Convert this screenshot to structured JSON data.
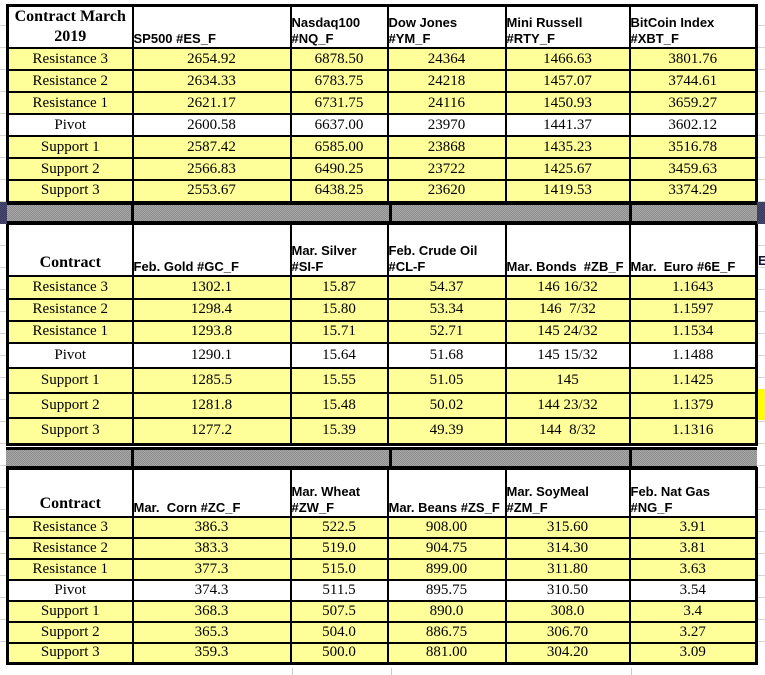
{
  "colors": {
    "row_highlight": "#FFFF99",
    "pivot_row_background": "#FFFFFF",
    "table_border": "#000000",
    "separator_gray": "#999999",
    "separator_header_blue": "#414167",
    "edge_fragment_yellow": "#FFFF00"
  },
  "edge_fragment_letter": "E",
  "tables": [
    {
      "name": "march-2019-index-futures",
      "corner_label": "Contract March\n2019",
      "columns": [
        "SP500 #ES_F",
        "Nasdaq100\n#NQ_F",
        "Dow Jones\n#YM_F",
        "Mini Russell\n#RTY_F",
        "BitCoin Index\n#XBT_F"
      ],
      "rows": [
        {
          "label": "Resistance 3",
          "values": [
            "2654.92",
            "6878.50",
            "24364",
            "1466.63",
            "3801.76"
          ]
        },
        {
          "label": "Resistance 2",
          "values": [
            "2634.33",
            "6783.75",
            "24218",
            "1457.07",
            "3744.61"
          ]
        },
        {
          "label": "Resistance 1",
          "values": [
            "2621.17",
            "6731.75",
            "24116",
            "1450.93",
            "3659.27"
          ]
        },
        {
          "label": "Pivot",
          "values": [
            "2600.58",
            "6637.00",
            "23970",
            "1441.37",
            "3602.12"
          ]
        },
        {
          "label": "Support 1",
          "values": [
            "2587.42",
            "6585.00",
            "23868",
            "1435.23",
            "3516.78"
          ]
        },
        {
          "label": "Support 2",
          "values": [
            "2566.83",
            "6490.25",
            "23722",
            "1425.67",
            "3459.63"
          ]
        },
        {
          "label": "Support 3",
          "values": [
            "2553.67",
            "6438.25",
            "23620",
            "1419.53",
            "3374.29"
          ]
        }
      ]
    },
    {
      "name": "metals-energy-bonds-euro-futures",
      "corner_label": "Contract",
      "columns": [
        "Feb. Gold #GC_F",
        "Mar. Silver\n#SI-F",
        "Feb. Crude Oil\n#CL-F",
        "Mar. Bonds  #ZB_F",
        "Mar.  Euro #6E_F"
      ],
      "rows": [
        {
          "label": "Resistance 3",
          "values": [
            "1302.1",
            "15.87",
            "54.37",
            "146 16/32",
            "1.1643"
          ]
        },
        {
          "label": "Resistance 2",
          "values": [
            "1298.4",
            "15.80",
            "53.34",
            "146  7/32",
            "1.1597"
          ]
        },
        {
          "label": "Resistance 1",
          "values": [
            "1293.8",
            "15.71",
            "52.71",
            "145 24/32",
            "1.1534"
          ]
        },
        {
          "label": "Pivot",
          "values": [
            "1290.1",
            "15.64",
            "51.68",
            "145 15/32",
            "1.1488"
          ]
        },
        {
          "label": "Support 1",
          "values": [
            "1285.5",
            "15.55",
            "51.05",
            "145",
            "1.1425"
          ]
        },
        {
          "label": "Support 2",
          "values": [
            "1281.8",
            "15.48",
            "50.02",
            "144 23/32",
            "1.1379"
          ]
        },
        {
          "label": "Support 3",
          "values": [
            "1277.2",
            "15.39",
            "49.39",
            "144  8/32",
            "1.1316"
          ]
        }
      ]
    },
    {
      "name": "grains-natgas-futures",
      "corner_label": "Contract",
      "columns": [
        "Mar.  Corn #ZC_F",
        "Mar. Wheat\n#ZW_F",
        "Mar. Beans #ZS_F",
        "Mar. SoyMeal\n#ZM_F",
        "Feb. Nat Gas\n#NG_F"
      ],
      "rows": [
        {
          "label": "Resistance 3",
          "values": [
            "386.3",
            "522.5",
            "908.00",
            "315.60",
            "3.91"
          ]
        },
        {
          "label": "Resistance 2",
          "values": [
            "383.3",
            "519.0",
            "904.75",
            "314.30",
            "3.81"
          ]
        },
        {
          "label": "Resistance 1",
          "values": [
            "377.3",
            "515.0",
            "899.00",
            "311.80",
            "3.63"
          ]
        },
        {
          "label": "Pivot",
          "values": [
            "374.3",
            "511.5",
            "895.75",
            "310.50",
            "3.54"
          ]
        },
        {
          "label": "Support 1",
          "values": [
            "368.3",
            "507.5",
            "890.0",
            "308.0",
            "3.4"
          ]
        },
        {
          "label": "Support 2",
          "values": [
            "365.3",
            "504.0",
            "886.75",
            "306.70",
            "3.27"
          ]
        },
        {
          "label": "Support 3",
          "values": [
            "359.3",
            "500.0",
            "881.00",
            "304.20",
            "3.09"
          ]
        }
      ]
    }
  ]
}
